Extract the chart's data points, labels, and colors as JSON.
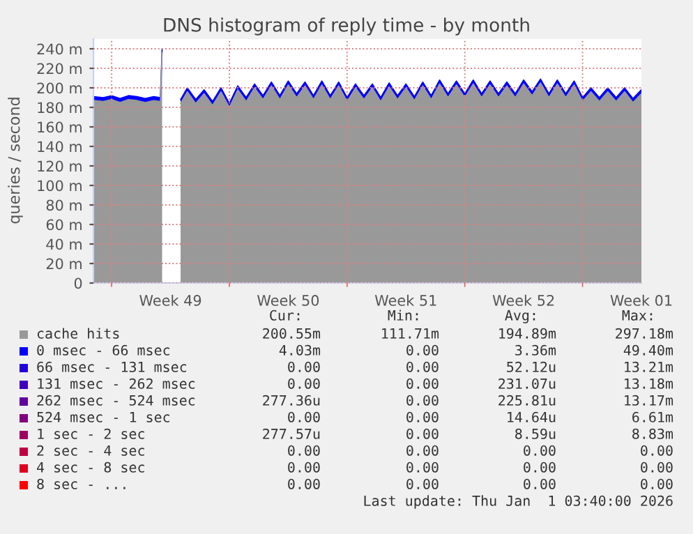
{
  "chart_data": {
    "type": "area",
    "stacked": true,
    "title": "DNS histogram of reply time - by month",
    "ylabel": "queries / second",
    "x": [
      "2025-11-29T22:00",
      "2025-11-30T12:00",
      "2025-12-01",
      "2025-12-01T12:00",
      "2025-12-02",
      "2025-12-02T12:00",
      "2025-12-03",
      "2025-12-03T12:00",
      "2025-12-03T21:36",
      "2025-12-04",
      "2025-12-04T01:12",
      "2025-12-05T02:24",
      "2025-12-05T12:00",
      "2025-12-06",
      "2025-12-06T12:00",
      "2025-12-07",
      "2025-12-07T12:00",
      "2025-12-08",
      "2025-12-08T12:00",
      "2025-12-09",
      "2025-12-09T12:00",
      "2025-12-10",
      "2025-12-10T12:00",
      "2025-12-11",
      "2025-12-11T12:00",
      "2025-12-12",
      "2025-12-12T12:00",
      "2025-12-13",
      "2025-12-13T12:00",
      "2025-12-14",
      "2025-12-14T12:00",
      "2025-12-15",
      "2025-12-15T12:00",
      "2025-12-16",
      "2025-12-16T12:00",
      "2025-12-17",
      "2025-12-17T12:00",
      "2025-12-18",
      "2025-12-18T12:00",
      "2025-12-19",
      "2025-12-19T12:00",
      "2025-12-20",
      "2025-12-20T12:00",
      "2025-12-21",
      "2025-12-21T12:00",
      "2025-12-22",
      "2025-12-22T12:00",
      "2025-12-23",
      "2025-12-23T12:00",
      "2025-12-24",
      "2025-12-24T12:00",
      "2025-12-25",
      "2025-12-25T12:00",
      "2025-12-26",
      "2025-12-26T12:00",
      "2025-12-27",
      "2025-12-27T12:00",
      "2025-12-28",
      "2025-12-28T12:00",
      "2025-12-29",
      "2025-12-29T12:00",
      "2025-12-30",
      "2025-12-30T12:00",
      "2025-12-31",
      "2025-12-31T12:00",
      "2026-01-01",
      "2026-01-01T12:00"
    ],
    "xlim": [
      "2025-11-29T22:00",
      "2026-01-01T12:00"
    ],
    "xticks": [
      {
        "value": "2025-12-01",
        "label": null
      },
      {
        "value": "2025-12-04T12:00",
        "label": "Week 49"
      },
      {
        "value": "2025-12-08",
        "label": null
      },
      {
        "value": "2025-12-11T12:00",
        "label": "Week 50"
      },
      {
        "value": "2025-12-15",
        "label": null
      },
      {
        "value": "2025-12-18T12:00",
        "label": "Week 51"
      },
      {
        "value": "2025-12-22",
        "label": null
      },
      {
        "value": "2025-12-25T12:00",
        "label": "Week 52"
      },
      {
        "value": "2025-12-29",
        "label": null
      },
      {
        "value": "2026-01-01T12:00",
        "label": "Week 01"
      }
    ],
    "ylim": [
      0,
      250
    ],
    "yticks": [
      0,
      {
        "value": 20,
        "label": "20 m"
      },
      {
        "value": 40,
        "label": "40 m"
      },
      {
        "value": 60,
        "label": "60 m"
      },
      {
        "value": 80,
        "label": "80 m"
      },
      {
        "value": 100,
        "label": "100 m"
      },
      {
        "value": 120,
        "label": "120 m"
      },
      {
        "value": 140,
        "label": "140 m"
      },
      {
        "value": 160,
        "label": "160 m"
      },
      {
        "value": 180,
        "label": "180 m"
      },
      {
        "value": 200,
        "label": "200 m"
      },
      {
        "value": 220,
        "label": "220 m"
      },
      {
        "value": 240,
        "label": "240 m"
      }
    ],
    "grid": true,
    "legend": "bottom",
    "series": [
      {
        "name": "cache hits",
        "color": "#999999",
        "values": [
          187,
          186,
          188,
          185,
          188,
          187,
          185,
          187,
          186,
          236,
          null,
          184,
          196,
          184,
          194,
          182,
          196,
          180,
          198,
          186,
          200,
          188,
          202,
          188,
          203,
          190,
          202,
          188,
          203,
          188,
          202,
          186,
          200,
          188,
          200,
          186,
          201,
          188,
          200,
          187,
          202,
          188,
          204,
          190,
          203,
          190,
          204,
          190,
          203,
          190,
          202,
          190,
          204,
          192,
          205,
          190,
          204,
          190,
          203,
          186,
          196,
          186,
          196,
          186,
          196,
          185,
          194
        ]
      },
      {
        "name": "0 msec - 66 msec",
        "color": "#0000ff",
        "values": [
          4,
          4,
          4,
          4,
          4,
          4,
          4,
          4,
          4,
          4,
          null,
          4,
          4,
          4,
          4,
          4,
          4,
          4,
          4,
          4,
          4,
          4,
          4,
          4,
          4,
          4,
          4,
          4,
          4,
          4,
          4,
          4,
          4,
          4,
          4,
          4,
          4,
          4,
          4,
          4,
          4,
          4,
          4,
          4,
          4,
          4,
          4,
          4,
          4,
          4,
          4,
          4,
          4,
          4,
          4,
          4,
          4,
          4,
          4,
          4,
          4,
          4,
          4,
          4,
          4,
          4,
          4
        ]
      },
      {
        "name": "66 msec - 131 msec",
        "color": "#2000df",
        "values": [
          null,
          null,
          null,
          null,
          null,
          null,
          null,
          null,
          null,
          null,
          null,
          null,
          null,
          null,
          null,
          null,
          null,
          null,
          null,
          null,
          null,
          null,
          null,
          null,
          null,
          null,
          null,
          null,
          null,
          null,
          null,
          null,
          null,
          null,
          null,
          null,
          null,
          null,
          null,
          null,
          null,
          null,
          null,
          null,
          null,
          null,
          null,
          null,
          null,
          null,
          null,
          null,
          null,
          null,
          null,
          null,
          null,
          null,
          null,
          null,
          null,
          null,
          null,
          null,
          null,
          null,
          null
        ]
      },
      {
        "name": "131 msec - 262 msec",
        "color": "#4000bf",
        "values": [
          null,
          null,
          null,
          null,
          null,
          null,
          null,
          null,
          null,
          null,
          null,
          null,
          null,
          null,
          null,
          null,
          null,
          null,
          null,
          null,
          null,
          null,
          null,
          null,
          null,
          null,
          null,
          null,
          null,
          null,
          null,
          null,
          null,
          null,
          null,
          null,
          null,
          null,
          null,
          null,
          null,
          null,
          null,
          null,
          null,
          null,
          null,
          null,
          null,
          null,
          null,
          null,
          null,
          null,
          null,
          null,
          null,
          null,
          null,
          null,
          null,
          null,
          null,
          null,
          null,
          null,
          null
        ]
      },
      {
        "name": "262 msec - 524 msec",
        "color": "#60009f",
        "values": [
          null,
          null,
          null,
          null,
          null,
          null,
          null,
          null,
          null,
          null,
          null,
          null,
          null,
          null,
          null,
          null,
          null,
          null,
          null,
          null,
          null,
          null,
          null,
          null,
          null,
          null,
          null,
          null,
          null,
          null,
          null,
          null,
          null,
          null,
          null,
          null,
          null,
          null,
          null,
          null,
          null,
          null,
          null,
          null,
          null,
          null,
          null,
          null,
          null,
          null,
          null,
          null,
          null,
          null,
          null,
          null,
          null,
          null,
          null,
          null,
          null,
          null,
          null,
          null,
          null,
          null,
          null
        ]
      },
      {
        "name": "524 msec - 1 sec",
        "color": "#80007f",
        "values": [
          null,
          null,
          null,
          null,
          null,
          null,
          null,
          null,
          null,
          null,
          null,
          null,
          null,
          null,
          null,
          null,
          null,
          null,
          null,
          null,
          null,
          null,
          null,
          null,
          null,
          null,
          null,
          null,
          null,
          null,
          null,
          null,
          null,
          null,
          null,
          null,
          null,
          null,
          null,
          null,
          null,
          null,
          null,
          null,
          null,
          null,
          null,
          null,
          null,
          null,
          null,
          null,
          null,
          null,
          null,
          null,
          null,
          null,
          null,
          null,
          null,
          null,
          null,
          null,
          null,
          null,
          null
        ]
      },
      {
        "name": "1 sec - 2 sec",
        "color": "#9f0060",
        "values": [
          null,
          null,
          null,
          null,
          null,
          null,
          null,
          null,
          null,
          null,
          null,
          null,
          null,
          null,
          null,
          null,
          null,
          null,
          null,
          null,
          null,
          null,
          null,
          null,
          null,
          null,
          null,
          null,
          null,
          null,
          null,
          null,
          null,
          null,
          null,
          null,
          null,
          null,
          null,
          null,
          null,
          null,
          null,
          null,
          null,
          null,
          null,
          null,
          null,
          null,
          null,
          null,
          null,
          null,
          null,
          null,
          null,
          null,
          null,
          null,
          null,
          null,
          null,
          null,
          null,
          null,
          null
        ]
      },
      {
        "name": "2 sec - 4 sec",
        "color": "#bf0040",
        "values": [
          null,
          null,
          null,
          null,
          null,
          null,
          null,
          null,
          null,
          null,
          null,
          null,
          null,
          null,
          null,
          null,
          null,
          null,
          null,
          null,
          null,
          null,
          null,
          null,
          null,
          null,
          null,
          null,
          null,
          null,
          null,
          null,
          null,
          null,
          null,
          null,
          null,
          null,
          null,
          null,
          null,
          null,
          null,
          null,
          null,
          null,
          null,
          null,
          null,
          null,
          null,
          null,
          null,
          null,
          null,
          null,
          null,
          null,
          null,
          null,
          null,
          null,
          null,
          null,
          null,
          null,
          null
        ]
      },
      {
        "name": "4 sec - 8 sec",
        "color": "#df0020",
        "values": [
          null,
          null,
          null,
          null,
          null,
          null,
          null,
          null,
          null,
          null,
          null,
          null,
          null,
          null,
          null,
          null,
          null,
          null,
          null,
          null,
          null,
          null,
          null,
          null,
          null,
          null,
          null,
          null,
          null,
          null,
          null,
          null,
          null,
          null,
          null,
          null,
          null,
          null,
          null,
          null,
          null,
          null,
          null,
          null,
          null,
          null,
          null,
          null,
          null,
          null,
          null,
          null,
          null,
          null,
          null,
          null,
          null,
          null,
          null,
          null,
          null,
          null,
          null,
          null,
          null,
          null,
          null
        ]
      },
      {
        "name": "8 sec - ...",
        "color": "#ff0000",
        "values": [
          null,
          null,
          null,
          null,
          null,
          null,
          null,
          null,
          null,
          null,
          null,
          null,
          null,
          null,
          null,
          null,
          null,
          null,
          null,
          null,
          null,
          null,
          null,
          null,
          null,
          null,
          null,
          null,
          null,
          null,
          null,
          null,
          null,
          null,
          null,
          null,
          null,
          null,
          null,
          null,
          null,
          null,
          null,
          null,
          null,
          null,
          null,
          null,
          null,
          null,
          null,
          null,
          null,
          null,
          null,
          null,
          null,
          null,
          null,
          null,
          null,
          null,
          null,
          null,
          null,
          null,
          null
        ]
      }
    ],
    "annotations": [
      "Cur:",
      "Min:",
      "Avg:",
      "Max:",
      "200.55m",
      "111.71m",
      "194.89m",
      "297.18m",
      "4.03m",
      "0.00",
      "3.36m",
      "49.40m",
      "0.00",
      "0.00",
      "52.12u",
      "13.21m",
      "0.00",
      "0.00",
      "231.07u",
      "13.18m",
      "277.36u",
      "0.00",
      "225.81u",
      "13.17m",
      "0.00",
      "0.00",
      "14.64u",
      "6.61m",
      "277.57u",
      "0.00",
      "8.59u",
      "8.83m",
      "0.00",
      "0.00",
      "0.00",
      "0.00",
      "0.00",
      "0.00",
      "0.00",
      "0.00",
      "0.00",
      "0.00",
      "0.00",
      "0.00",
      "Last update: Thu Jan  1 03:40:00 2026"
    ]
  }
}
